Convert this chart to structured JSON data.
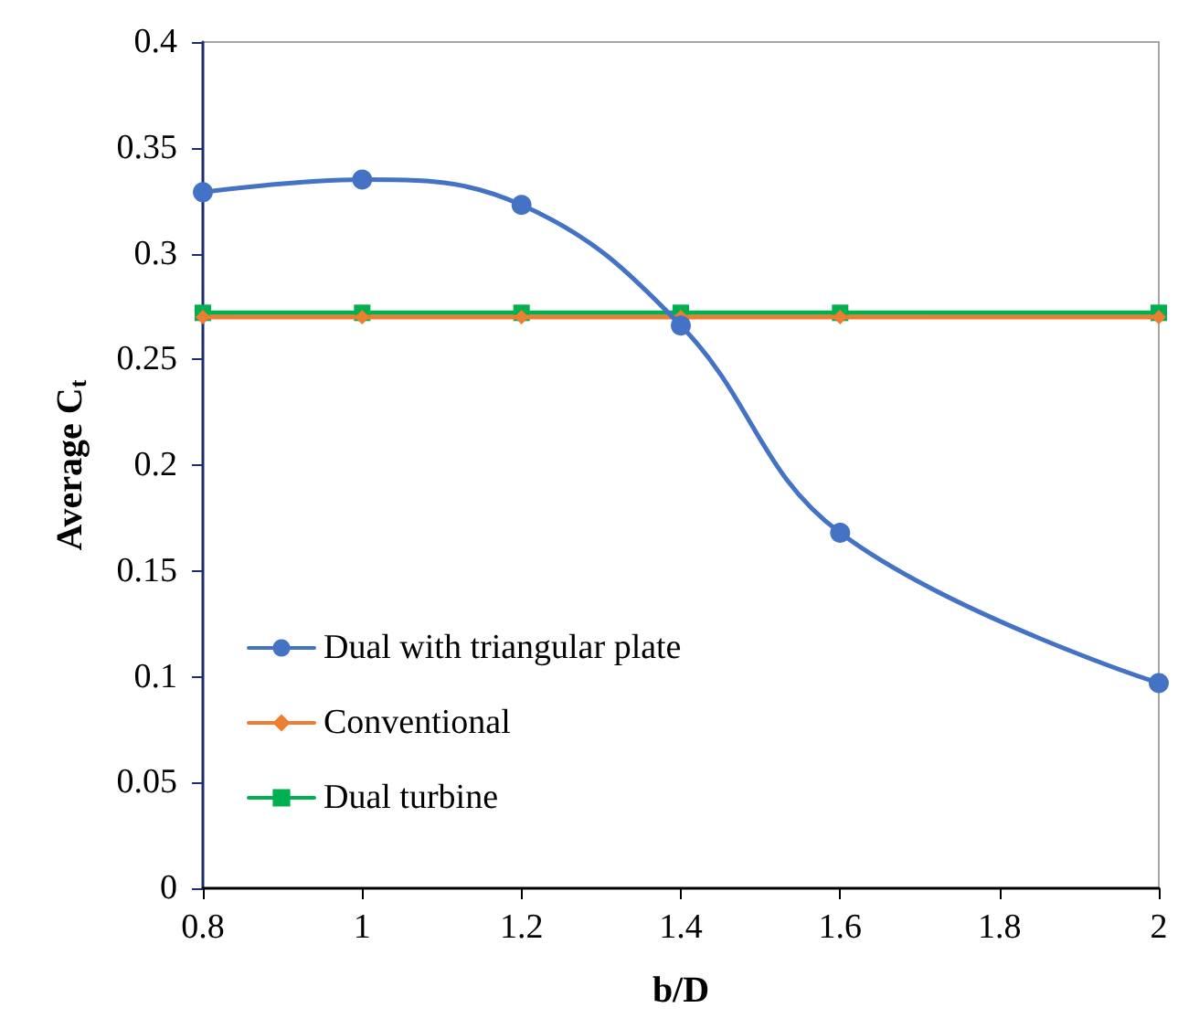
{
  "chart_data": {
    "type": "line",
    "xlabel": "b/D",
    "ylabel": "Average C$_{t}$",
    "x": [
      0.8,
      1,
      1.2,
      1.4,
      1.6,
      2
    ],
    "series": [
      {
        "name": "Dual with triangular plate",
        "color": "#4472c4",
        "marker": "circle",
        "values": [
          0.329,
          0.335,
          0.323,
          0.266,
          0.168,
          0.097
        ]
      },
      {
        "name": "Conventional",
        "color": "#ed7d31",
        "marker": "diamond",
        "values": [
          0.27,
          0.27,
          0.27,
          0.27,
          0.27,
          0.27
        ]
      },
      {
        "name": "Dual turbine",
        "color": "#00b050",
        "marker": "square",
        "values": [
          0.272,
          0.272,
          0.272,
          0.272,
          0.272,
          0.272
        ]
      }
    ],
    "xlim": [
      0.8,
      2
    ],
    "xticks": [
      0.8,
      1,
      1.2,
      1.4,
      1.6,
      1.8,
      2
    ],
    "ylim": [
      0,
      0.4
    ],
    "yticks": [
      0,
      0.05,
      0.1,
      0.15,
      0.2,
      0.25,
      0.3,
      0.35,
      0.4
    ],
    "legend": "bottom left",
    "grid": false
  }
}
